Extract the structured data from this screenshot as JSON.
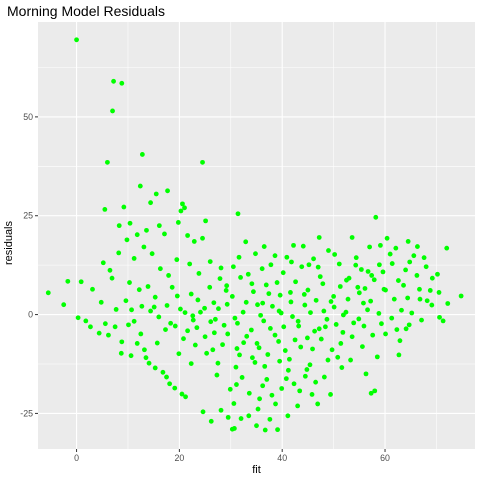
{
  "chart_data": {
    "type": "scatter",
    "title": "Morning Model Residuals",
    "xlabel": "fit",
    "ylabel": "residuals",
    "xlim": [
      -7.5,
      77.5
    ],
    "ylim": [
      -34,
      74
    ],
    "x_ticks": [
      0,
      20,
      40,
      60
    ],
    "y_ticks": [
      -25,
      0,
      25,
      50
    ],
    "x_minor_ticks": [
      -10,
      10,
      30,
      50,
      70
    ],
    "y_minor_ticks": [
      -37.5,
      -12.5,
      12.5,
      37.5,
      62.5
    ],
    "grid": true,
    "legend": "none",
    "point_color": "#00ff00",
    "panel_color": "#ebebeb",
    "grid_color": "#ffffff",
    "points": [
      [
        0,
        69.5
      ],
      [
        7.2,
        59
      ],
      [
        8.8,
        58.5
      ],
      [
        7,
        51.5
      ],
      [
        12.8,
        40.5
      ],
      [
        24.5,
        38.5
      ],
      [
        6,
        38.5
      ],
      [
        12.4,
        32.5
      ],
      [
        15.5,
        30.5
      ],
      [
        17.7,
        31.3
      ],
      [
        14.4,
        28.3
      ],
      [
        20.6,
        28
      ],
      [
        21,
        27
      ],
      [
        20.3,
        26.2
      ],
      [
        9.2,
        27.2
      ],
      [
        5.5,
        26.6
      ],
      [
        31.4,
        25.5
      ],
      [
        25.1,
        23.7
      ],
      [
        19.8,
        23.3
      ],
      [
        58.2,
        24.6
      ],
      [
        8.3,
        22.5
      ],
      [
        10.4,
        23.1
      ],
      [
        16.1,
        22.5
      ],
      [
        13.6,
        21.3
      ],
      [
        17.1,
        20.4
      ],
      [
        21.6,
        20
      ],
      [
        11.8,
        20.2
      ],
      [
        24.5,
        19.3
      ],
      [
        22.9,
        18.5
      ],
      [
        32.9,
        18.4
      ],
      [
        47.2,
        19.5
      ],
      [
        53.6,
        19.5
      ],
      [
        60.4,
        19.3
      ],
      [
        64.5,
        18.5
      ],
      [
        36.5,
        17.2
      ],
      [
        42.2,
        17.5
      ],
      [
        44.1,
        17.3
      ],
      [
        59.1,
        17.5
      ],
      [
        57,
        17.1
      ],
      [
        62.1,
        16.8
      ],
      [
        66.3,
        17.2
      ],
      [
        72,
        16.8
      ],
      [
        49,
        16.2
      ],
      [
        38.6,
        14.9
      ],
      [
        40.9,
        14.5
      ],
      [
        31.6,
        14.5
      ],
      [
        30.5,
        12.1
      ],
      [
        45.2,
        12.6
      ],
      [
        51.1,
        12.8
      ],
      [
        54.3,
        12.5
      ],
      [
        47,
        12
      ],
      [
        65.6,
        14.9
      ],
      [
        67.6,
        14.4
      ],
      [
        26,
        13.4
      ],
      [
        61.4,
        12.9
      ],
      [
        43.8,
        12.1
      ],
      [
        55.4,
        11.4
      ],
      [
        59.6,
        10.8
      ],
      [
        64,
        11.3
      ],
      [
        36.1,
        11.6
      ],
      [
        28.1,
        11.8
      ],
      [
        33.4,
        10.2
      ],
      [
        40.2,
        10.6
      ],
      [
        53,
        9.2
      ],
      [
        69.2,
        9.2
      ],
      [
        57.9,
        8.8
      ],
      [
        62.6,
        8.6
      ],
      [
        39,
        8.1
      ],
      [
        34.1,
        7.8
      ],
      [
        29.2,
        7.3
      ],
      [
        47.9,
        7.8
      ],
      [
        51.3,
        7.1
      ],
      [
        56.1,
        6.6
      ],
      [
        60.1,
        6.2
      ],
      [
        66.7,
        6.4
      ],
      [
        70.5,
        5.6
      ],
      [
        44.3,
        5.1
      ],
      [
        37.4,
        5.3
      ],
      [
        30.3,
        4.6
      ],
      [
        64.4,
        4.2
      ],
      [
        68.2,
        3.5
      ],
      [
        74.8,
        4.7
      ],
      [
        72.2,
        2.8
      ],
      [
        55.8,
        2.9
      ],
      [
        49.5,
        3.3
      ],
      [
        41.7,
        3.2
      ],
      [
        35.2,
        2.5
      ],
      [
        26.7,
        3
      ],
      [
        23.6,
        3.7
      ],
      [
        19.6,
        4.7
      ],
      [
        15.3,
        4.4
      ],
      [
        12.2,
        6.3
      ],
      [
        -5.5,
        5.5
      ],
      [
        -2.5,
        2.5
      ],
      [
        -1.7,
        8.4
      ],
      [
        0.9,
        8.3
      ],
      [
        3.1,
        6.4
      ],
      [
        4.8,
        3.1
      ],
      [
        7.7,
        1.3
      ],
      [
        9.6,
        3.5
      ],
      [
        10.7,
        1.2
      ],
      [
        14.4,
        0.9
      ],
      [
        21.1,
        0.5
      ],
      [
        24.1,
        0.6
      ],
      [
        27.6,
        1.5
      ],
      [
        32.4,
        0.6
      ],
      [
        39.8,
        0.4
      ],
      [
        45.5,
        0.5
      ],
      [
        52.4,
        0.6
      ],
      [
        58.8,
        0.3
      ],
      [
        63.2,
        1.1
      ],
      [
        70.6,
        -0.7
      ],
      [
        71.3,
        -1.6
      ],
      [
        0.3,
        -0.8
      ],
      [
        1.8,
        -1.6
      ],
      [
        5.6,
        -2.3
      ],
      [
        11.2,
        -1.7
      ],
      [
        16,
        -0.6
      ],
      [
        18.3,
        -2.2
      ],
      [
        22.7,
        -1.4
      ],
      [
        27,
        -1.2
      ],
      [
        31.3,
        -2.2
      ],
      [
        36.4,
        -1.6
      ],
      [
        43.1,
        -1.7
      ],
      [
        48.7,
        -1.2
      ],
      [
        54.9,
        -1.1
      ],
      [
        61.3,
        -0.9
      ],
      [
        64.7,
        -2.6
      ],
      [
        2.7,
        -3.1
      ],
      [
        4.4,
        -4.7
      ],
      [
        6.2,
        -5.2
      ],
      [
        8.8,
        -6.9
      ],
      [
        12.5,
        -4.9
      ],
      [
        17.3,
        -3.8
      ],
      [
        21.6,
        -4.1
      ],
      [
        25,
        -5.6
      ],
      [
        29.4,
        -4.9
      ],
      [
        34,
        -3.9
      ],
      [
        38.6,
        -5.2
      ],
      [
        42.5,
        -6.4
      ],
      [
        47.2,
        -3.6
      ],
      [
        51.8,
        -4.5
      ],
      [
        57.6,
        -5.2
      ],
      [
        62.3,
        -3.8
      ],
      [
        8.7,
        -9.8
      ],
      [
        10.6,
        -10.4
      ],
      [
        13.5,
        -10.9
      ],
      [
        14.1,
        -12.3
      ],
      [
        15.3,
        -13.5
      ],
      [
        16.8,
        -14.6
      ],
      [
        17.5,
        -15.8
      ],
      [
        18.1,
        -17.5
      ],
      [
        19.1,
        -18.6
      ],
      [
        20.5,
        -20.1
      ],
      [
        21.2,
        -20.8
      ],
      [
        26.5,
        -8.9
      ],
      [
        31.2,
        -8.6
      ],
      [
        35.5,
        -8.4
      ],
      [
        40.6,
        -9.1
      ],
      [
        45.9,
        -8.7
      ],
      [
        50.8,
        -10.8
      ],
      [
        53.3,
        -11.5
      ],
      [
        27.5,
        -12.3
      ],
      [
        31,
        -13.3
      ],
      [
        36.6,
        -13.1
      ],
      [
        41.2,
        -14.1
      ],
      [
        44.5,
        -15.6
      ],
      [
        48.2,
        -15.8
      ],
      [
        31.1,
        -17.7
      ],
      [
        36.2,
        -18
      ],
      [
        39.9,
        -18.7
      ],
      [
        45.8,
        -20.2
      ],
      [
        49.4,
        -20.2
      ],
      [
        56.3,
        -15
      ],
      [
        58,
        -19.3
      ],
      [
        30.6,
        -22.5
      ],
      [
        35.6,
        -21.3
      ],
      [
        38.7,
        -22.6
      ],
      [
        43,
        -23.1
      ],
      [
        46.9,
        -22.6
      ],
      [
        57.3,
        -19.9
      ],
      [
        28.1,
        -24.2
      ],
      [
        29.5,
        -26
      ],
      [
        24.6,
        -24.6
      ],
      [
        26.2,
        -27
      ],
      [
        30.3,
        -29
      ],
      [
        30.7,
        -28.8
      ],
      [
        35,
        -28.1
      ],
      [
        36.7,
        -29.2
      ],
      [
        39.1,
        -29.1
      ],
      [
        32,
        -26.3
      ],
      [
        33.5,
        -25.6
      ],
      [
        37.6,
        -26.5
      ],
      [
        41.1,
        -25.6
      ],
      [
        33,
        3.1
      ],
      [
        35.8,
        -0.2
      ],
      [
        38.1,
        2.1
      ],
      [
        40.3,
        -3.1
      ],
      [
        42,
        -0.5
      ],
      [
        44.4,
        2.4
      ],
      [
        46.3,
        -4.2
      ],
      [
        48.1,
        0.9
      ],
      [
        50.5,
        -2.5
      ],
      [
        52.8,
        3.9
      ],
      [
        33.1,
        -5.5
      ],
      [
        35.1,
        -7.3
      ],
      [
        37.2,
        -10.1
      ],
      [
        39.3,
        -6.8
      ],
      [
        41.4,
        -11.3
      ],
      [
        43.6,
        -8.2
      ],
      [
        45.4,
        -12.7
      ],
      [
        47.6,
        -6.2
      ],
      [
        49.7,
        -8.9
      ],
      [
        51.6,
        -13.4
      ],
      [
        34.4,
        5.8
      ],
      [
        36.9,
        7.5
      ],
      [
        39.6,
        4.9
      ],
      [
        42.6,
        8.3
      ],
      [
        45,
        6.2
      ],
      [
        47.4,
        9.6
      ],
      [
        50,
        4.6
      ],
      [
        52.5,
        8.7
      ],
      [
        55,
        5.5
      ],
      [
        57.4,
        9.9
      ],
      [
        32.2,
        -15.9
      ],
      [
        34.7,
        -12.1
      ],
      [
        37,
        -16.4
      ],
      [
        39.5,
        -11.8
      ],
      [
        42.3,
        -17.5
      ],
      [
        44.8,
        -13.9
      ],
      [
        28.7,
        -2.7
      ],
      [
        26.1,
        -1.8
      ],
      [
        23.4,
        -3.3
      ],
      [
        20.8,
        -6.1
      ],
      [
        19.2,
        -2.9
      ],
      [
        29.9,
        -18.9
      ],
      [
        27.3,
        -15.3
      ],
      [
        25.3,
        -9.8
      ],
      [
        23.1,
        -7.7
      ],
      [
        29.1,
        6.1
      ],
      [
        27.9,
        9.1
      ],
      [
        25.9,
        6.9
      ],
      [
        23.8,
        10.4
      ],
      [
        22,
        12.8
      ],
      [
        19.5,
        13.9
      ],
      [
        17.9,
        9.9
      ],
      [
        16.3,
        11.6
      ],
      [
        14.7,
        15.4
      ],
      [
        13.1,
        17.1
      ],
      [
        11.2,
        14.2
      ],
      [
        9.8,
        18.9
      ],
      [
        8.2,
        15.6
      ],
      [
        6.5,
        11.2
      ],
      [
        5.2,
        13.1
      ],
      [
        6.9,
        9.2
      ],
      [
        10.3,
        8.1
      ],
      [
        13.9,
        7.1
      ],
      [
        18.6,
        6.9
      ],
      [
        22.3,
        5.2
      ],
      [
        11.8,
        -7.3
      ],
      [
        13.2,
        -8.9
      ],
      [
        15.7,
        -7.2
      ],
      [
        19.9,
        -9.9
      ],
      [
        22.3,
        -12.4
      ],
      [
        53.6,
        -5.6
      ],
      [
        55.6,
        -8.1
      ],
      [
        58.5,
        -10.7
      ],
      [
        60.1,
        -4.9
      ],
      [
        62.9,
        -6.6
      ],
      [
        65.2,
        0.4
      ],
      [
        67.1,
        -1.4
      ],
      [
        69.1,
        2.4
      ],
      [
        56.6,
        1.2
      ],
      [
        59.3,
        -2.3
      ],
      [
        61.8,
        3.9
      ],
      [
        63.6,
        7.4
      ],
      [
        66.2,
        9.9
      ],
      [
        68.8,
        6.1
      ],
      [
        54.4,
        14.4
      ],
      [
        56.7,
        10.9
      ],
      [
        50.2,
        15.2
      ],
      [
        46.1,
        14.1
      ],
      [
        41.8,
        13.3
      ],
      [
        37.8,
        12.6
      ],
      [
        34.8,
        15.4
      ],
      [
        31.9,
        9.4
      ],
      [
        29.3,
        2.6
      ],
      [
        31.7,
        -10.2
      ],
      [
        33.6,
        -19.9
      ],
      [
        35.3,
        -23.9
      ],
      [
        38,
        -20.4
      ],
      [
        40.8,
        -16.2
      ],
      [
        43.4,
        -19.3
      ],
      [
        46.5,
        -17.1
      ],
      [
        48.9,
        -11.5
      ],
      [
        51.4,
        -7.3
      ],
      [
        53.9,
        -2.1
      ],
      [
        39.4,
        0.9
      ],
      [
        41.6,
        5.6
      ],
      [
        43.2,
        -2.9
      ],
      [
        44.9,
        -5.9
      ],
      [
        46.6,
        3.6
      ],
      [
        48.4,
        -3.1
      ],
      [
        50.1,
        1.9
      ],
      [
        51.9,
        -0.1
      ],
      [
        36.2,
        2.9
      ],
      [
        37.7,
        -3.5
      ],
      [
        34.2,
        -10.9
      ],
      [
        32.5,
        -7.1
      ],
      [
        30.8,
        -0.9
      ],
      [
        28.4,
        -7.6
      ],
      [
        26.8,
        -4.6
      ],
      [
        24.9,
        1.6
      ],
      [
        22.6,
        -0.3
      ],
      [
        20.2,
        1.4
      ],
      [
        17.6,
        2.3
      ],
      [
        15.1,
        1.9
      ],
      [
        12.7,
        2.1
      ],
      [
        10.1,
        -2.6
      ],
      [
        7.5,
        -3.1
      ],
      [
        62.7,
        -10.2
      ],
      [
        64.1,
        -3.6
      ],
      [
        59.8,
        6.4
      ],
      [
        57.2,
        3.4
      ],
      [
        55.9,
        -2.9
      ],
      [
        54.7,
        6.9
      ],
      [
        58.9,
        12.6
      ],
      [
        61,
        15.3
      ],
      [
        64.8,
        13.3
      ],
      [
        68,
        12.1
      ],
      [
        70.2,
        10.2
      ],
      [
        66.8,
        3.9
      ]
    ]
  }
}
